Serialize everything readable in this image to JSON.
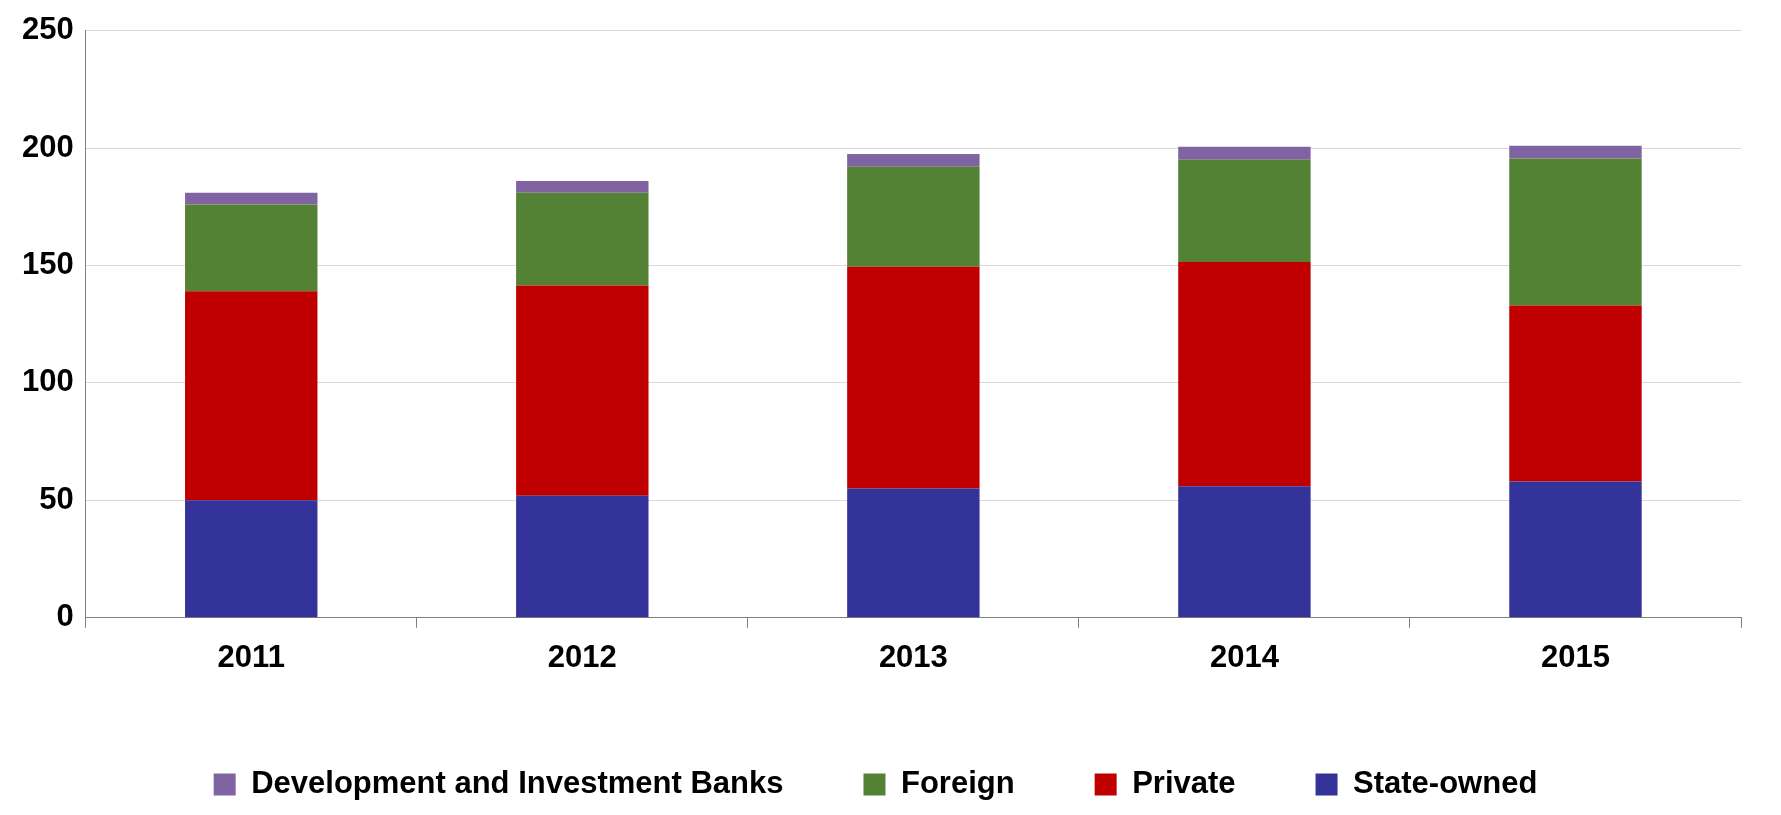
{
  "chart_data": {
    "type": "bar",
    "stacked": true,
    "categories": [
      "2011",
      "2012",
      "2013",
      "2014",
      "2015"
    ],
    "series": [
      {
        "name": "State-owned",
        "color": "#333399",
        "values": [
          50,
          52,
          55,
          56,
          58
        ]
      },
      {
        "name": "Private",
        "color": "#c00000",
        "values": [
          89,
          89.5,
          94.5,
          95.5,
          75
        ]
      },
      {
        "name": "Foreign",
        "color": "#548235",
        "values": [
          37,
          39.5,
          42.5,
          43.5,
          62.5
        ]
      },
      {
        "name": "Development and Investment Banks",
        "color": "#8064a2",
        "values": [
          5,
          5,
          5.5,
          5.5,
          5.5
        ]
      }
    ],
    "ylim": [
      0,
      250
    ],
    "yticks": [
      0,
      50,
      100,
      150,
      200,
      250
    ],
    "grid": "y",
    "legend": "bottom"
  }
}
